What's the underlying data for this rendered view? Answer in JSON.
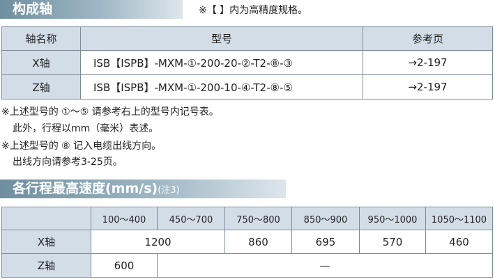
{
  "section1": {
    "title": "构成轴",
    "note": "※【 】内为高精度规格。"
  },
  "table1": {
    "headers": [
      "轴名称",
      "型号",
      "参考页"
    ],
    "rows": [
      [
        "X轴",
        "ISB【ISPB】-MXM-①-200-20-②-T2-⑧-③",
        "→2-197"
      ],
      [
        "Z轴",
        "ISB【ISPB】-MXM-①-200-10-④-T2-⑧-⑤",
        "→2-197"
      ]
    ]
  },
  "notes": [
    "※上述型号的 ①～⑤ 请参考右上的型号内记号表。",
    "此外，行程以mm（毫米）表述。",
    "※上述型号的 ⑧ 记入电缆出线方向。",
    "出线方向请参考3-25页。"
  ],
  "section2": {
    "title": "各行程最高速度(mm/s)",
    "note": "(注3)"
  },
  "table2": {
    "headers": [
      "100～400",
      "450～700",
      "750～800",
      "850～900",
      "950～1000",
      "1050～1100"
    ],
    "rows": [
      {
        "label": "X轴",
        "cells": [
          "1200",
          "860",
          "695",
          "570",
          "460"
        ]
      },
      {
        "label": "Z轴",
        "cells": [
          "600",
          "—"
        ]
      }
    ]
  }
}
